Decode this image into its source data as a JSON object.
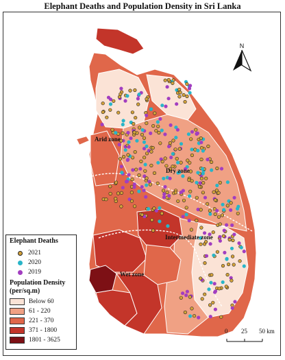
{
  "title": "Elephant Deaths and Population Density in Sri Lanka",
  "north_label": "N",
  "legend": {
    "deaths_heading": "Elephant Deaths",
    "deaths": [
      {
        "label": "2021",
        "color": "#d4a23a",
        "border": "#222222"
      },
      {
        "label": "2020",
        "color": "#29b5c8",
        "border": "#29b5c8"
      },
      {
        "label": "2019",
        "color": "#a23ec0",
        "border": "#a23ec0"
      }
    ],
    "density_heading_1": "Population Density",
    "density_heading_2": "(per/sq.m)",
    "density": [
      {
        "label": "Below 60",
        "color": "#fbe3d6"
      },
      {
        "label": "61 - 220",
        "color": "#f0a184"
      },
      {
        "label": "221 - 370",
        "color": "#e0674a"
      },
      {
        "label": "371 - 1800",
        "color": "#c3352a"
      },
      {
        "label": "1801 - 3625",
        "color": "#7d1015"
      }
    ]
  },
  "zones": {
    "arid": "Arid zone",
    "dry": "Dry zone",
    "intermediate": "Intermediate zone",
    "wet": "Wet zone"
  },
  "scale": {
    "t0": "0",
    "t1": "25",
    "t2": "50 km"
  }
}
